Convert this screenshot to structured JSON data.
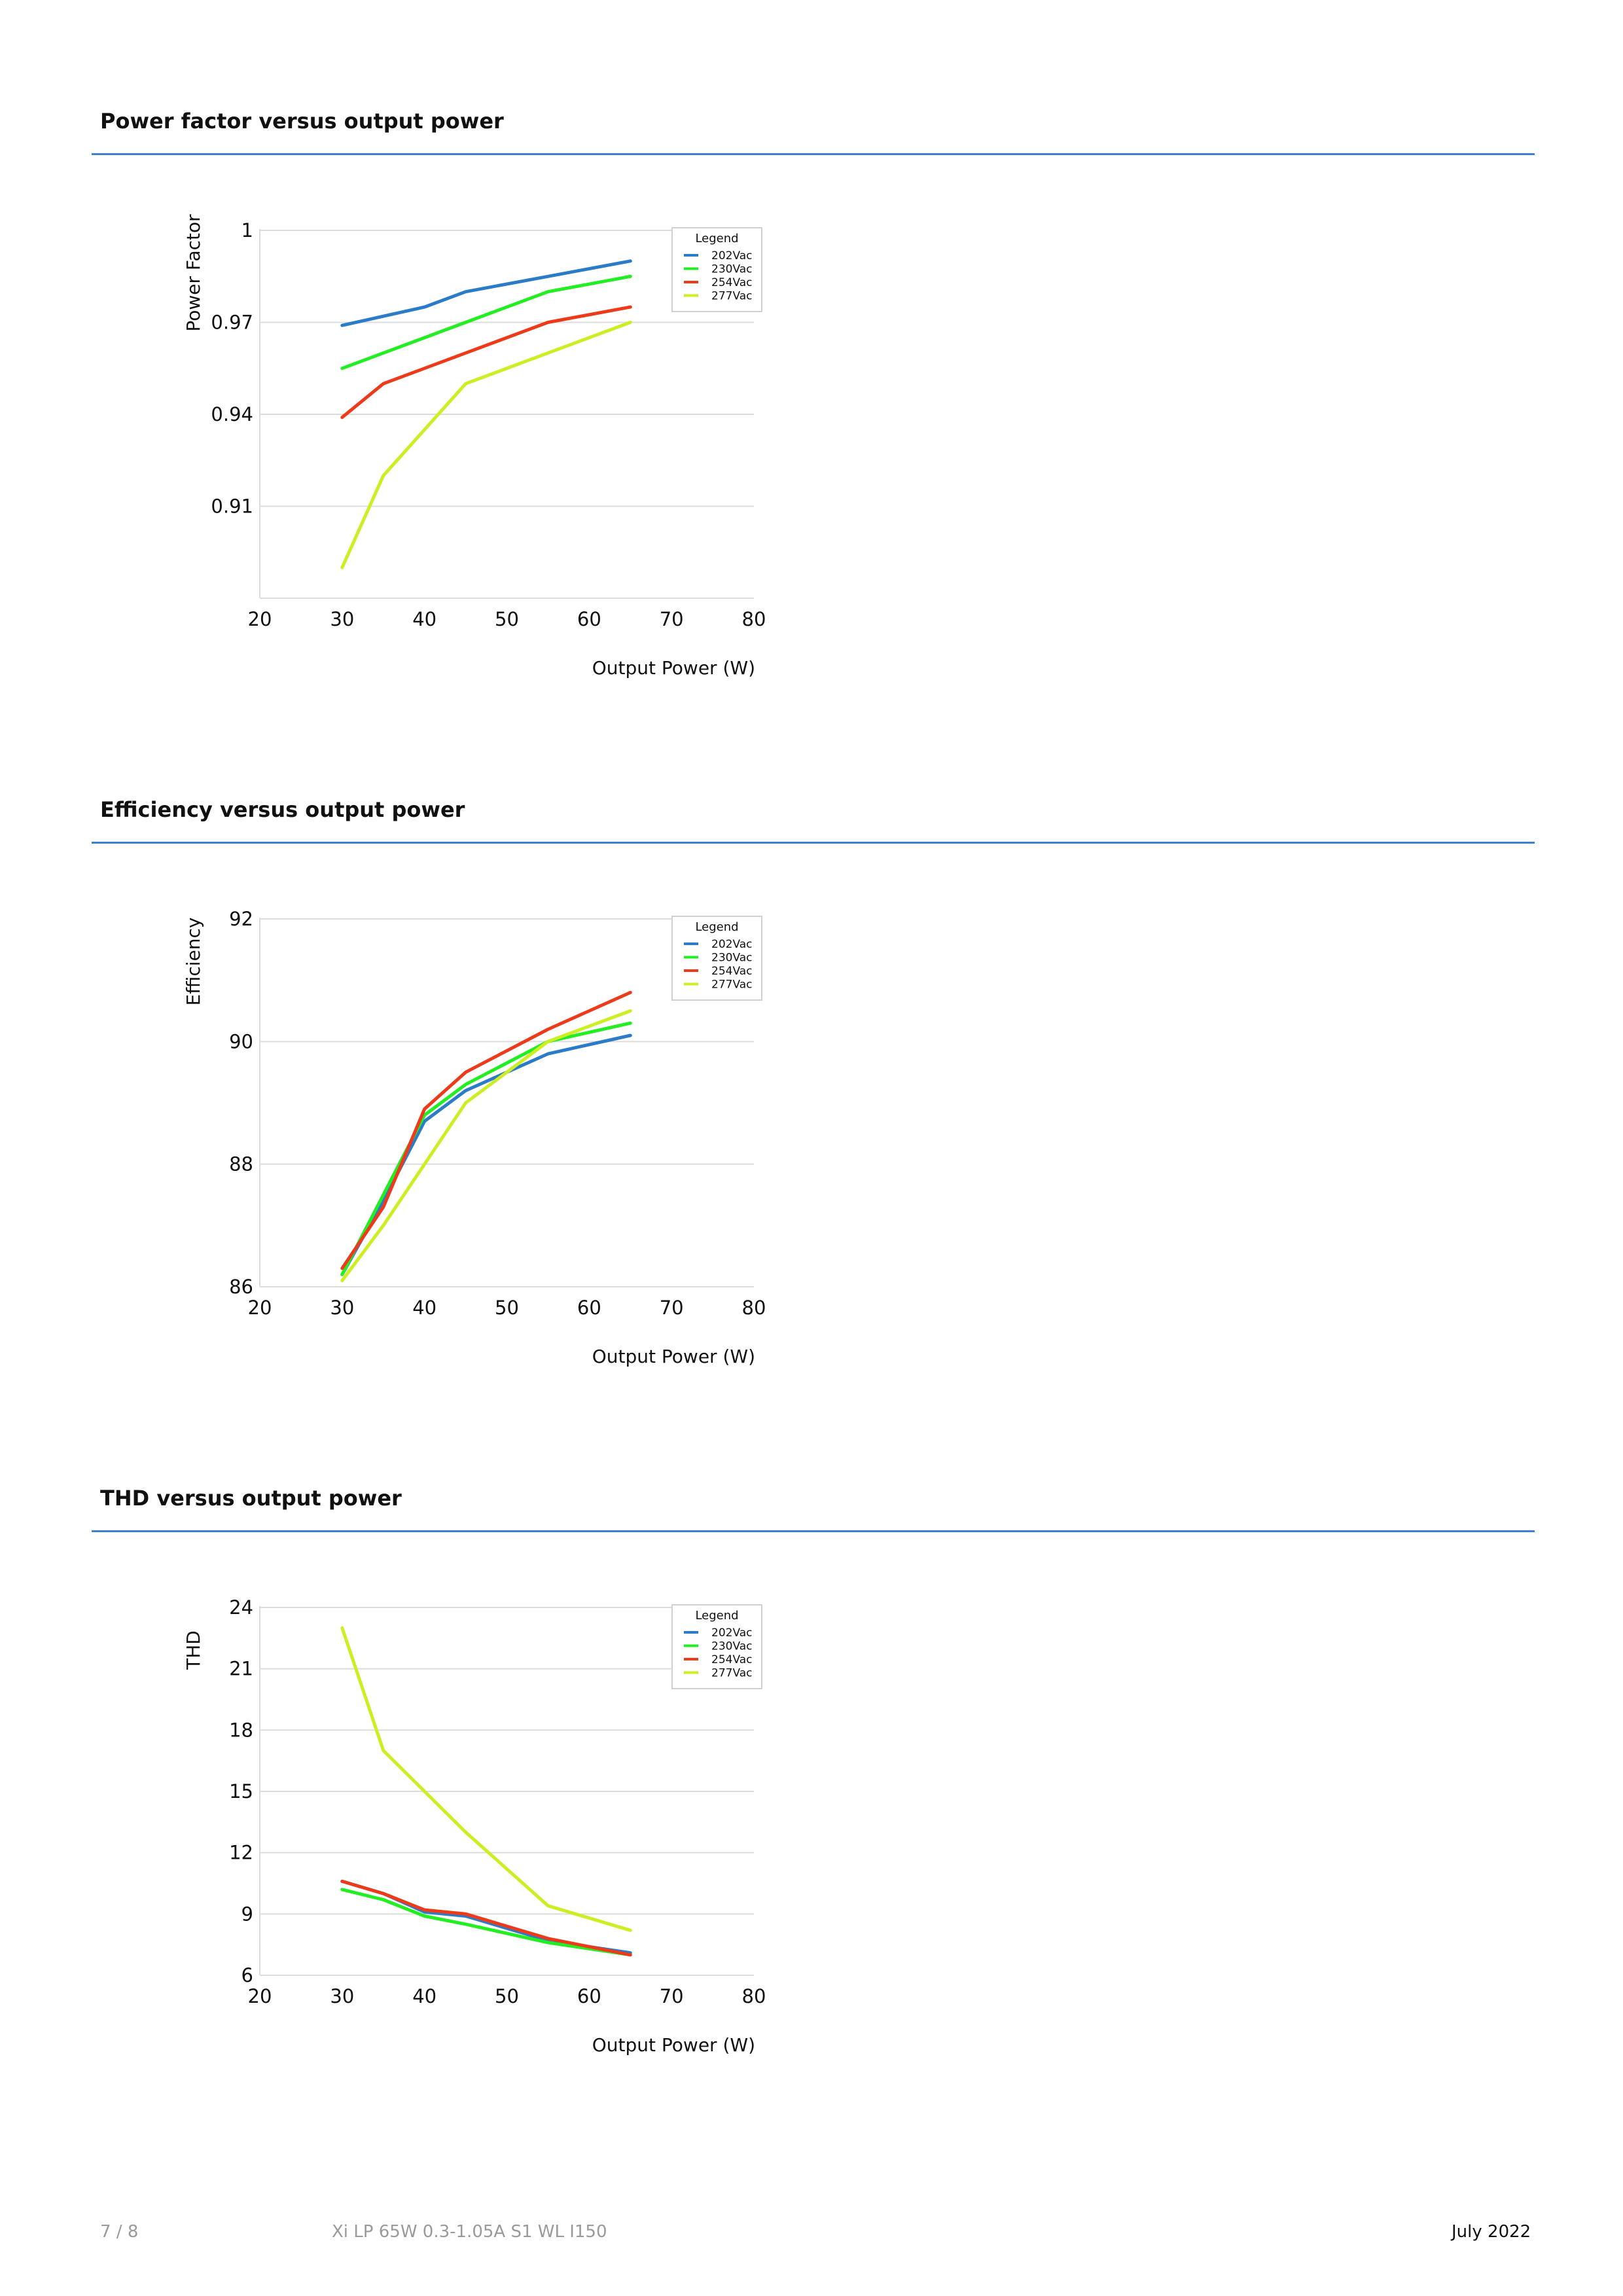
{
  "sections": [
    {
      "title": "Power factor versus output power"
    },
    {
      "title": "Efficiency versus output power"
    },
    {
      "title": "THD versus output power"
    }
  ],
  "chart_data": [
    {
      "type": "line",
      "ylabel": "Power Factor",
      "xlabel": "Output Power (W)",
      "xlim": [
        20,
        80
      ],
      "ylim": [
        0.88,
        1
      ],
      "xticks": [
        "20",
        "30",
        "40",
        "50",
        "60",
        "70",
        "80"
      ],
      "yticks": [
        "0.91",
        "0.94",
        "0.97",
        "1"
      ],
      "ytick_values": [
        0.91,
        0.94,
        0.97,
        1
      ],
      "grid": true,
      "legend_title": "Legend",
      "legend_position": "top-right",
      "series": [
        {
          "name": "202Vac",
          "color": "#2a7bc8",
          "x": [
            30,
            40,
            45,
            55,
            65
          ],
          "y": [
            0.969,
            0.975,
            0.98,
            0.985,
            0.99
          ]
        },
        {
          "name": "230Vac",
          "color": "#22ee22",
          "x": [
            30,
            45,
            55,
            65
          ],
          "y": [
            0.955,
            0.97,
            0.98,
            0.985
          ]
        },
        {
          "name": "254Vac",
          "color": "#ee3a1a",
          "x": [
            30,
            35,
            45,
            55,
            65
          ],
          "y": [
            0.939,
            0.95,
            0.96,
            0.97,
            0.975
          ]
        },
        {
          "name": "277Vac",
          "color": "#ccee22",
          "x": [
            30,
            35,
            45,
            55,
            65
          ],
          "y": [
            0.89,
            0.92,
            0.95,
            0.96,
            0.97
          ]
        }
      ]
    },
    {
      "type": "line",
      "ylabel": "Efficiency",
      "xlabel": "Output Power (W)",
      "xlim": [
        20,
        80
      ],
      "ylim": [
        86,
        92
      ],
      "xticks": [
        "20",
        "30",
        "40",
        "50",
        "60",
        "70",
        "80"
      ],
      "yticks": [
        "86",
        "88",
        "90",
        "92"
      ],
      "ytick_values": [
        86,
        88,
        90,
        92
      ],
      "grid": true,
      "legend_title": "Legend",
      "legend_position": "top-right",
      "series": [
        {
          "name": "202Vac",
          "color": "#2a7bc8",
          "x": [
            30,
            35,
            40,
            45,
            55,
            65
          ],
          "y": [
            86.2,
            87.4,
            88.7,
            89.2,
            89.8,
            90.1
          ]
        },
        {
          "name": "230Vac",
          "color": "#22ee22",
          "x": [
            30,
            35,
            40,
            45,
            55,
            65
          ],
          "y": [
            86.2,
            87.5,
            88.8,
            89.3,
            90.0,
            90.3
          ]
        },
        {
          "name": "254Vac",
          "color": "#ee3a1a",
          "x": [
            30,
            35,
            40,
            45,
            55,
            65
          ],
          "y": [
            86.3,
            87.3,
            88.9,
            89.5,
            90.2,
            90.8
          ]
        },
        {
          "name": "277Vac",
          "color": "#ccee22",
          "x": [
            30,
            35,
            40,
            45,
            55,
            65
          ],
          "y": [
            86.1,
            87.0,
            88.0,
            89.0,
            90.0,
            90.5
          ]
        }
      ]
    },
    {
      "type": "line",
      "ylabel": "THD",
      "xlabel": "Output Power (W)",
      "xlim": [
        20,
        80
      ],
      "ylim": [
        6,
        24
      ],
      "xticks": [
        "20",
        "30",
        "40",
        "50",
        "60",
        "70",
        "80"
      ],
      "yticks": [
        "6",
        "9",
        "12",
        "15",
        "18",
        "21",
        "24"
      ],
      "ytick_values": [
        6,
        9,
        12,
        15,
        18,
        21,
        24
      ],
      "grid": true,
      "legend_title": "Legend",
      "legend_position": "top-right",
      "series": [
        {
          "name": "202Vac",
          "color": "#2a7bc8",
          "x": [
            30,
            35,
            40,
            45,
            55,
            65
          ],
          "y": [
            10.6,
            10.0,
            9.1,
            8.9,
            7.7,
            7.1
          ]
        },
        {
          "name": "230Vac",
          "color": "#22ee22",
          "x": [
            30,
            35,
            40,
            45,
            55,
            65
          ],
          "y": [
            10.2,
            9.7,
            8.9,
            8.5,
            7.6,
            7.0
          ]
        },
        {
          "name": "254Vac",
          "color": "#ee3a1a",
          "x": [
            30,
            35,
            40,
            45,
            55,
            65
          ],
          "y": [
            10.6,
            10.0,
            9.2,
            9.0,
            7.8,
            7.0
          ]
        },
        {
          "name": "277Vac",
          "color": "#ccee22",
          "x": [
            30,
            35,
            40,
            45,
            55,
            65
          ],
          "y": [
            23.0,
            17.0,
            15.0,
            13.0,
            9.4,
            8.2
          ]
        }
      ]
    }
  ],
  "footer": {
    "page": "7 / 8",
    "product": "Xi LP 65W 0.3-1.05A S1 WL I150",
    "date": "July 2022"
  }
}
